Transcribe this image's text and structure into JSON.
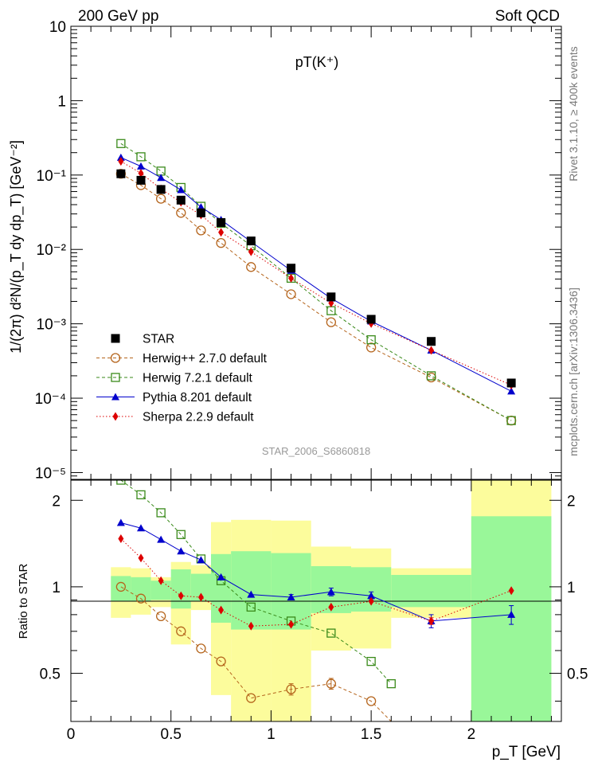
{
  "header": {
    "left": "200 GeV pp",
    "right": "Soft QCD"
  },
  "side_labels": {
    "right_top": "Rivet 3.1.10, ≥ 400k events",
    "right_bottom": "mcplots.cern.ch [arXiv:1306.3436]"
  },
  "colors": {
    "STAR": "#000000",
    "Herwig++ 2.7.0 default": "#b5651d",
    "Herwig 7.2.1 default": "#3a8a1a",
    "Pythia 8.201 default": "#0000cc",
    "Sherpa 2.2.9 default": "#dd0000",
    "band_inner": "#99f799",
    "band_outer": "#fcfc9c"
  },
  "chart_data": [
    {
      "type": "scatter",
      "title": "pT(K⁺)",
      "ylabel": "1/(2π) d²N/(p_T dy dp_T) [GeV⁻²]",
      "xlabel": "",
      "watermark": "STAR_2006_S6860818",
      "yscale": "log",
      "xlim": [
        0,
        2.45
      ],
      "ylim": [
        8.1e-06,
        10
      ],
      "y_ticks": [
        "10",
        "1",
        "10⁻¹",
        "10⁻²",
        "10⁻³",
        "10⁻⁴",
        "10⁻⁵"
      ],
      "legend_position": "bottom-left",
      "x": [
        0.25,
        0.35,
        0.45,
        0.55,
        0.65,
        0.75,
        0.9,
        1.1,
        1.3,
        1.5,
        1.8,
        2.2
      ],
      "series": [
        {
          "name": "STAR",
          "marker": "square",
          "values": [
            0.104,
            0.085,
            0.064,
            0.046,
            0.031,
            0.023,
            0.013,
            0.0056,
            0.0023,
            0.00115,
            0.00058,
            0.00016
          ]
        },
        {
          "name": "Herwig++ 2.7.0 default",
          "marker": "open-circle",
          "line": "dashed",
          "values": [
            0.104,
            0.073,
            0.048,
            0.031,
            0.018,
            0.0122,
            0.0058,
            0.0025,
            0.00105,
            0.00048,
            0.00019,
            5e-05
          ]
        },
        {
          "name": "Herwig 7.2.1 default",
          "marker": "open-square",
          "line": "dashed",
          "values": [
            0.265,
            0.176,
            0.113,
            0.068,
            0.038,
            0.0225,
            0.0112,
            0.0041,
            0.0015,
            0.00061,
            0.0002,
            5e-05
          ]
        },
        {
          "name": "Pythia 8.201 default",
          "marker": "triangle",
          "line": "solid",
          "values": [
            0.172,
            0.131,
            0.092,
            0.063,
            0.037,
            0.025,
            0.0127,
            0.0052,
            0.0022,
            0.00108,
            0.00044,
            0.000124
          ]
        },
        {
          "name": "Sherpa 2.2.9 default",
          "marker": "diamond",
          "line": "dotted",
          "values": [
            0.153,
            0.106,
            0.065,
            0.043,
            0.029,
            0.017,
            0.0093,
            0.0041,
            0.0019,
            0.00101,
            0.00044,
            0.00015
          ]
        }
      ]
    },
    {
      "type": "line",
      "ylabel": "Ratio to STAR",
      "xlabel": "p_T [GeV]",
      "xlim": [
        0,
        2.45
      ],
      "ylim": [
        0.34,
        2.35
      ],
      "x_ticks": [
        "0",
        "0.5",
        "1",
        "1.5",
        "2"
      ],
      "y_ticks": [
        "0.5",
        "1",
        "2"
      ],
      "bands": [
        {
          "x0": 0.2,
          "x1": 0.3,
          "inner": [
            0.89,
            1.09
          ],
          "outer": [
            0.78,
            1.17
          ]
        },
        {
          "x0": 0.3,
          "x1": 0.4,
          "inner": [
            0.89,
            1.08
          ],
          "outer": [
            0.8,
            1.16
          ]
        },
        {
          "x0": 0.4,
          "x1": 0.5,
          "inner": [
            0.9,
            1.05
          ],
          "outer": [
            0.85,
            1.08
          ]
        },
        {
          "x0": 0.5,
          "x1": 0.6,
          "inner": [
            0.84,
            1.15
          ],
          "outer": [
            0.63,
            1.22
          ]
        },
        {
          "x0": 0.6,
          "x1": 0.7,
          "inner": [
            0.89,
            1.11
          ],
          "outer": [
            0.83,
            1.19
          ]
        },
        {
          "x0": 0.7,
          "x1": 0.8,
          "inner": [
            0.75,
            1.3
          ],
          "outer": [
            0.42,
            1.68
          ]
        },
        {
          "x0": 0.8,
          "x1": 1.0,
          "inner": [
            0.71,
            1.33
          ],
          "outer": [
            0.34,
            1.71
          ]
        },
        {
          "x0": 1.0,
          "x1": 1.2,
          "inner": [
            0.71,
            1.31
          ],
          "outer": [
            0.34,
            1.7
          ]
        },
        {
          "x0": 1.2,
          "x1": 1.4,
          "inner": [
            0.81,
            1.18
          ],
          "outer": [
            0.6,
            1.38
          ]
        },
        {
          "x0": 1.4,
          "x1": 1.6,
          "inner": [
            0.82,
            1.17
          ],
          "outer": [
            0.61,
            1.36
          ]
        },
        {
          "x0": 1.6,
          "x1": 2.0,
          "inner": [
            0.85,
            1.1
          ],
          "outer": [
            0.78,
            1.16
          ]
        },
        {
          "x0": 2.0,
          "x1": 2.4,
          "inner": [
            0.34,
            1.76
          ],
          "outer": [
            0.34,
            2.35
          ]
        }
      ],
      "series": [
        {
          "name": "Herwig++ 2.7.0 default",
          "x": [
            0.25,
            0.35,
            0.45,
            0.55,
            0.65,
            0.75,
            0.9,
            1.1,
            1.3,
            1.5,
            1.6
          ],
          "values": [
            1.0,
            0.91,
            0.79,
            0.7,
            0.61,
            0.55,
            0.41,
            0.44,
            0.46,
            0.4,
            0.34
          ],
          "errors": [
            0,
            0,
            0,
            0,
            0,
            0,
            0,
            0.02,
            0.02,
            0,
            0
          ]
        },
        {
          "name": "Herwig 7.2.1 default",
          "x": [
            0.25,
            0.35,
            0.45,
            0.55,
            0.65,
            0.75,
            0.9,
            1.1,
            1.3,
            1.5,
            1.6
          ],
          "values": [
            2.35,
            2.09,
            1.81,
            1.52,
            1.25,
            1.05,
            0.85,
            0.76,
            0.69,
            0.55,
            0.46
          ],
          "errors": [
            0,
            0,
            0,
            0,
            0,
            0,
            0,
            0,
            0,
            0,
            0
          ]
        },
        {
          "name": "Pythia 8.201 default",
          "x": [
            0.25,
            0.35,
            0.45,
            0.55,
            0.65,
            0.75,
            0.9,
            1.1,
            1.3,
            1.5,
            1.8,
            2.2
          ],
          "values": [
            1.67,
            1.6,
            1.46,
            1.33,
            1.24,
            1.08,
            0.94,
            0.92,
            0.96,
            0.93,
            0.76,
            0.8
          ],
          "errors": [
            0,
            0,
            0,
            0,
            0,
            0,
            0,
            0.02,
            0.03,
            0.03,
            0.04,
            0.06
          ]
        },
        {
          "name": "Sherpa 2.2.9 default",
          "x": [
            0.25,
            0.35,
            0.45,
            0.55,
            0.65,
            0.75,
            0.9,
            1.1,
            1.3,
            1.5,
            1.8,
            2.2
          ],
          "values": [
            1.47,
            1.26,
            1.05,
            0.93,
            0.92,
            0.83,
            0.73,
            0.74,
            0.85,
            0.89,
            0.76,
            0.97
          ],
          "errors": [
            0,
            0,
            0,
            0,
            0,
            0,
            0,
            0,
            0,
            0,
            0.02,
            0
          ]
        }
      ]
    }
  ]
}
